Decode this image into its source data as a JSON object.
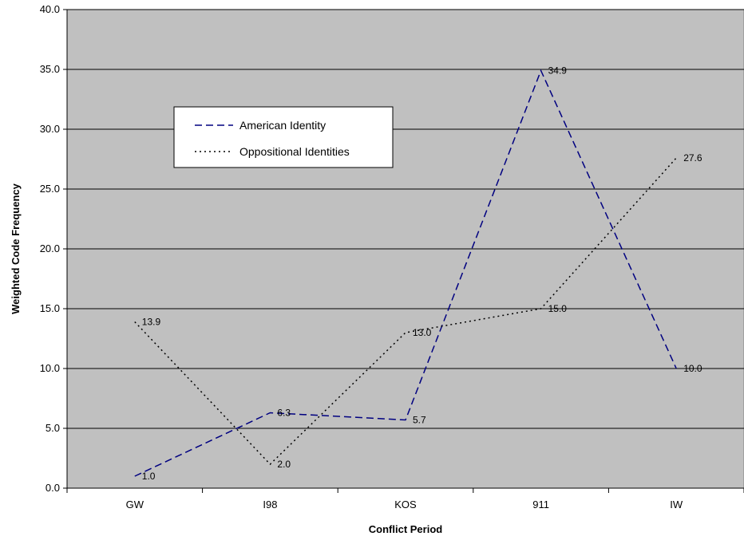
{
  "chart_data": {
    "type": "line",
    "xlabel": "Conflict Period",
    "ylabel": "Weighted Code Frequency",
    "categories": [
      "GW",
      "I98",
      "KOS",
      "911",
      "IW"
    ],
    "ylim": [
      0,
      40
    ],
    "yticks": [
      "0.0",
      "5.0",
      "10.0",
      "15.0",
      "20.0",
      "25.0",
      "30.0",
      "35.0",
      "40.0"
    ],
    "grid": true,
    "legend_position": "upper-left",
    "plot_background": "#c0c0c0",
    "series": [
      {
        "name": "American Identity",
        "values": [
          1.0,
          6.3,
          5.7,
          34.9,
          10.0
        ],
        "labels": [
          "1.0",
          "6.3",
          "5.7",
          "34.9",
          "10.0"
        ],
        "color": "#000080",
        "style": "dashed"
      },
      {
        "name": "Oppositional Identities",
        "values": [
          13.9,
          2.0,
          13.0,
          15.0,
          27.6
        ],
        "labels": [
          "13.9",
          "2.0",
          "13.0",
          "15.0",
          "27.6"
        ],
        "color": "#000000",
        "style": "dotted"
      }
    ]
  }
}
